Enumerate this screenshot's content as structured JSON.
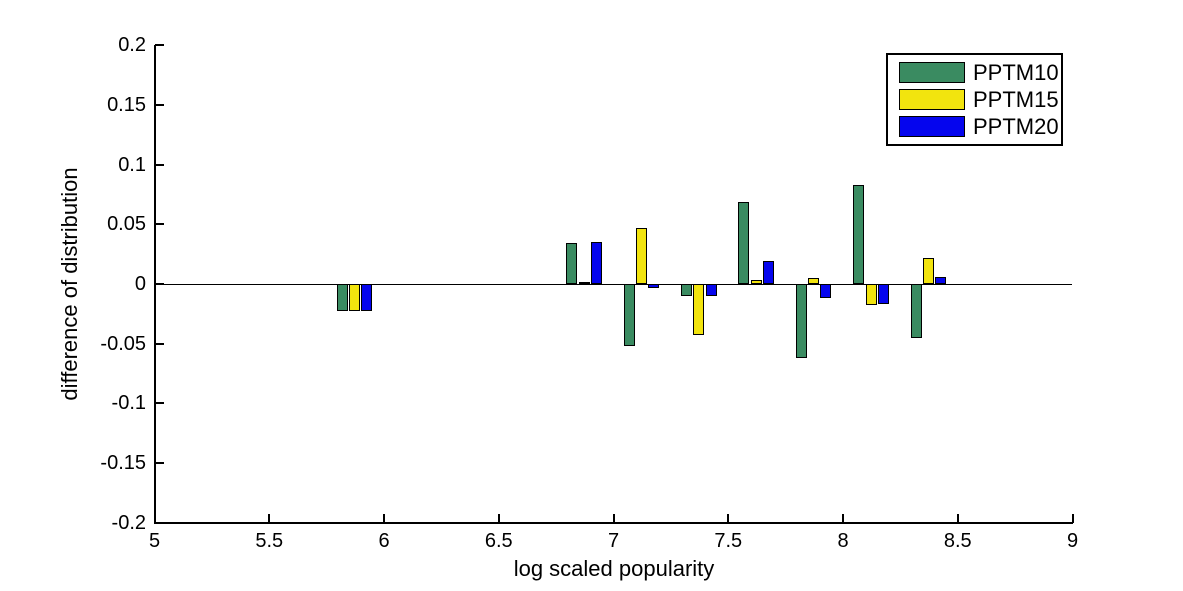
{
  "chart_data": {
    "type": "bar",
    "title": "",
    "xlabel": "log scaled popularity",
    "ylabel": "difference of distribution",
    "xlim": [
      5,
      9
    ],
    "ylim": [
      -0.2,
      0.2
    ],
    "grid": false,
    "x_tick_values": [
      5,
      5.5,
      6,
      6.5,
      7,
      7.5,
      8,
      8.5,
      9
    ],
    "x_tick_labels": [
      "5",
      "5.5",
      "6",
      "6.5",
      "7",
      "7.5",
      "8",
      "8.5",
      "9"
    ],
    "y_tick_values": [
      0.2,
      0.15,
      0.1,
      0.05,
      0,
      -0.05,
      -0.1,
      -0.15,
      -0.2
    ],
    "y_tick_labels": [
      "0.2",
      "0.15",
      "0.1",
      "0.05",
      "0",
      "-0.05",
      "-0.1",
      "-0.15",
      "-0.2"
    ],
    "x": [
      5.875,
      6.875,
      7.125,
      7.375,
      7.625,
      7.875,
      8.125,
      8.375
    ],
    "series": [
      {
        "name": "PPTM10",
        "color": "#3a8b61",
        "values": [
          -0.023,
          0.034,
          -0.052,
          -0.01,
          0.069,
          -0.062,
          0.083,
          -0.045
        ]
      },
      {
        "name": "PPTM15",
        "color": "#f2e40e",
        "values": [
          -0.023,
          0.002,
          0.047,
          -0.043,
          0.003,
          0.005,
          -0.018,
          0.022
        ]
      },
      {
        "name": "PPTM20",
        "color": "#0505ee",
        "values": [
          -0.023,
          0.035,
          -0.003,
          -0.01,
          0.019,
          -0.012,
          -0.017,
          0.006
        ]
      }
    ],
    "bar_edge_color": "#000000",
    "axis_color": "#000000",
    "background_color": "#ffffff",
    "legend": {
      "position": "top-right",
      "entries": [
        "PPTM10",
        "PPTM15",
        "PPTM20"
      ]
    }
  }
}
